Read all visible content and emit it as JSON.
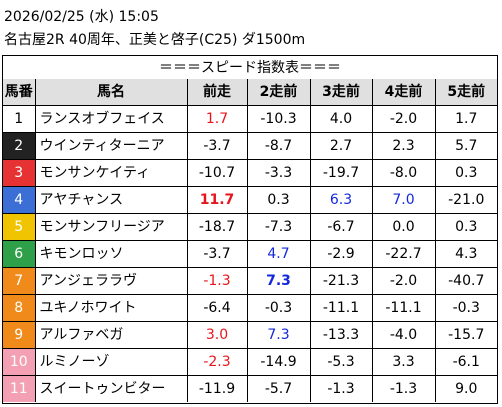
{
  "header": {
    "datetime": "2026/02/25 (水) 15:05",
    "race": "名古屋2R 40周年、正美と啓子(C25) ダ1500m"
  },
  "table_title": "＝＝＝スピード指数表＝＝＝",
  "columns": [
    "馬番",
    "馬名",
    "前走",
    "2走前",
    "3走前",
    "4走前",
    "5走前"
  ],
  "rows": [
    {
      "num": "1",
      "name": "ランスオブフェイス",
      "bg": "#ffffff",
      "fg": "#000000",
      "vals": [
        {
          "t": "1.7",
          "c": "red",
          "b": false
        },
        {
          "t": "-10.3"
        },
        {
          "t": "4.0"
        },
        {
          "t": "-2.0"
        },
        {
          "t": "1.7"
        }
      ]
    },
    {
      "num": "2",
      "name": "ウインティターニア",
      "bg": "#222222",
      "fg": "#ffffff",
      "vals": [
        {
          "t": "-3.7"
        },
        {
          "t": "-8.7"
        },
        {
          "t": "2.7"
        },
        {
          "t": "2.3"
        },
        {
          "t": "5.7"
        }
      ]
    },
    {
      "num": "3",
      "name": "モンサンケイティ",
      "bg": "#e63232",
      "fg": "#ffffff",
      "vals": [
        {
          "t": "-10.7"
        },
        {
          "t": "-3.3"
        },
        {
          "t": "-19.7"
        },
        {
          "t": "-8.0"
        },
        {
          "t": "0.3"
        }
      ]
    },
    {
      "num": "4",
      "name": "アヤチャンス",
      "bg": "#3b6fd6",
      "fg": "#ffffff",
      "vals": [
        {
          "t": "11.7",
          "c": "red",
          "b": true
        },
        {
          "t": "0.3"
        },
        {
          "t": "6.3",
          "c": "blue"
        },
        {
          "t": "7.0",
          "c": "blue"
        },
        {
          "t": "-21.0"
        }
      ]
    },
    {
      "num": "5",
      "name": "モンサンフリージア",
      "bg": "#f0c400",
      "fg": "#ffffff",
      "vals": [
        {
          "t": "-18.7"
        },
        {
          "t": "-7.3"
        },
        {
          "t": "-6.7"
        },
        {
          "t": "0.0"
        },
        {
          "t": "0.3"
        }
      ]
    },
    {
      "num": "6",
      "name": "キモンロッソ",
      "bg": "#2ea04a",
      "fg": "#ffffff",
      "vals": [
        {
          "t": "-3.7"
        },
        {
          "t": "4.7",
          "c": "blue"
        },
        {
          "t": "-2.9"
        },
        {
          "t": "-22.7"
        },
        {
          "t": "4.3"
        }
      ]
    },
    {
      "num": "7",
      "name": "アンジェララヴ",
      "bg": "#f08a1a",
      "fg": "#ffffff",
      "vals": [
        {
          "t": "-1.3",
          "c": "red"
        },
        {
          "t": "7.3",
          "c": "blue",
          "b": true
        },
        {
          "t": "-21.3"
        },
        {
          "t": "-2.0"
        },
        {
          "t": "-40.7"
        }
      ]
    },
    {
      "num": "8",
      "name": "ユキノホワイト",
      "bg": "#f08a1a",
      "fg": "#ffffff",
      "vals": [
        {
          "t": "-6.4"
        },
        {
          "t": "-0.3"
        },
        {
          "t": "-11.1"
        },
        {
          "t": "-11.1"
        },
        {
          "t": "-0.3"
        }
      ]
    },
    {
      "num": "9",
      "name": "アルファベガ",
      "bg": "#f08a1a",
      "fg": "#ffffff",
      "vals": [
        {
          "t": "3.0",
          "c": "red"
        },
        {
          "t": "7.3",
          "c": "blue"
        },
        {
          "t": "-13.3"
        },
        {
          "t": "-4.0"
        },
        {
          "t": "-15.7"
        }
      ]
    },
    {
      "num": "10",
      "name": "ルミノーゾ",
      "bg": "#f4a0b4",
      "fg": "#ffffff",
      "vals": [
        {
          "t": "-2.3",
          "c": "red"
        },
        {
          "t": "-14.9"
        },
        {
          "t": "-5.3"
        },
        {
          "t": "3.3"
        },
        {
          "t": "-6.1"
        }
      ]
    },
    {
      "num": "11",
      "name": "スイートゥンビター",
      "bg": "#f4a0b4",
      "fg": "#ffffff",
      "vals": [
        {
          "t": "-11.9"
        },
        {
          "t": "-5.7"
        },
        {
          "t": "-1.3"
        },
        {
          "t": "-1.3"
        },
        {
          "t": "9.0"
        }
      ]
    }
  ]
}
